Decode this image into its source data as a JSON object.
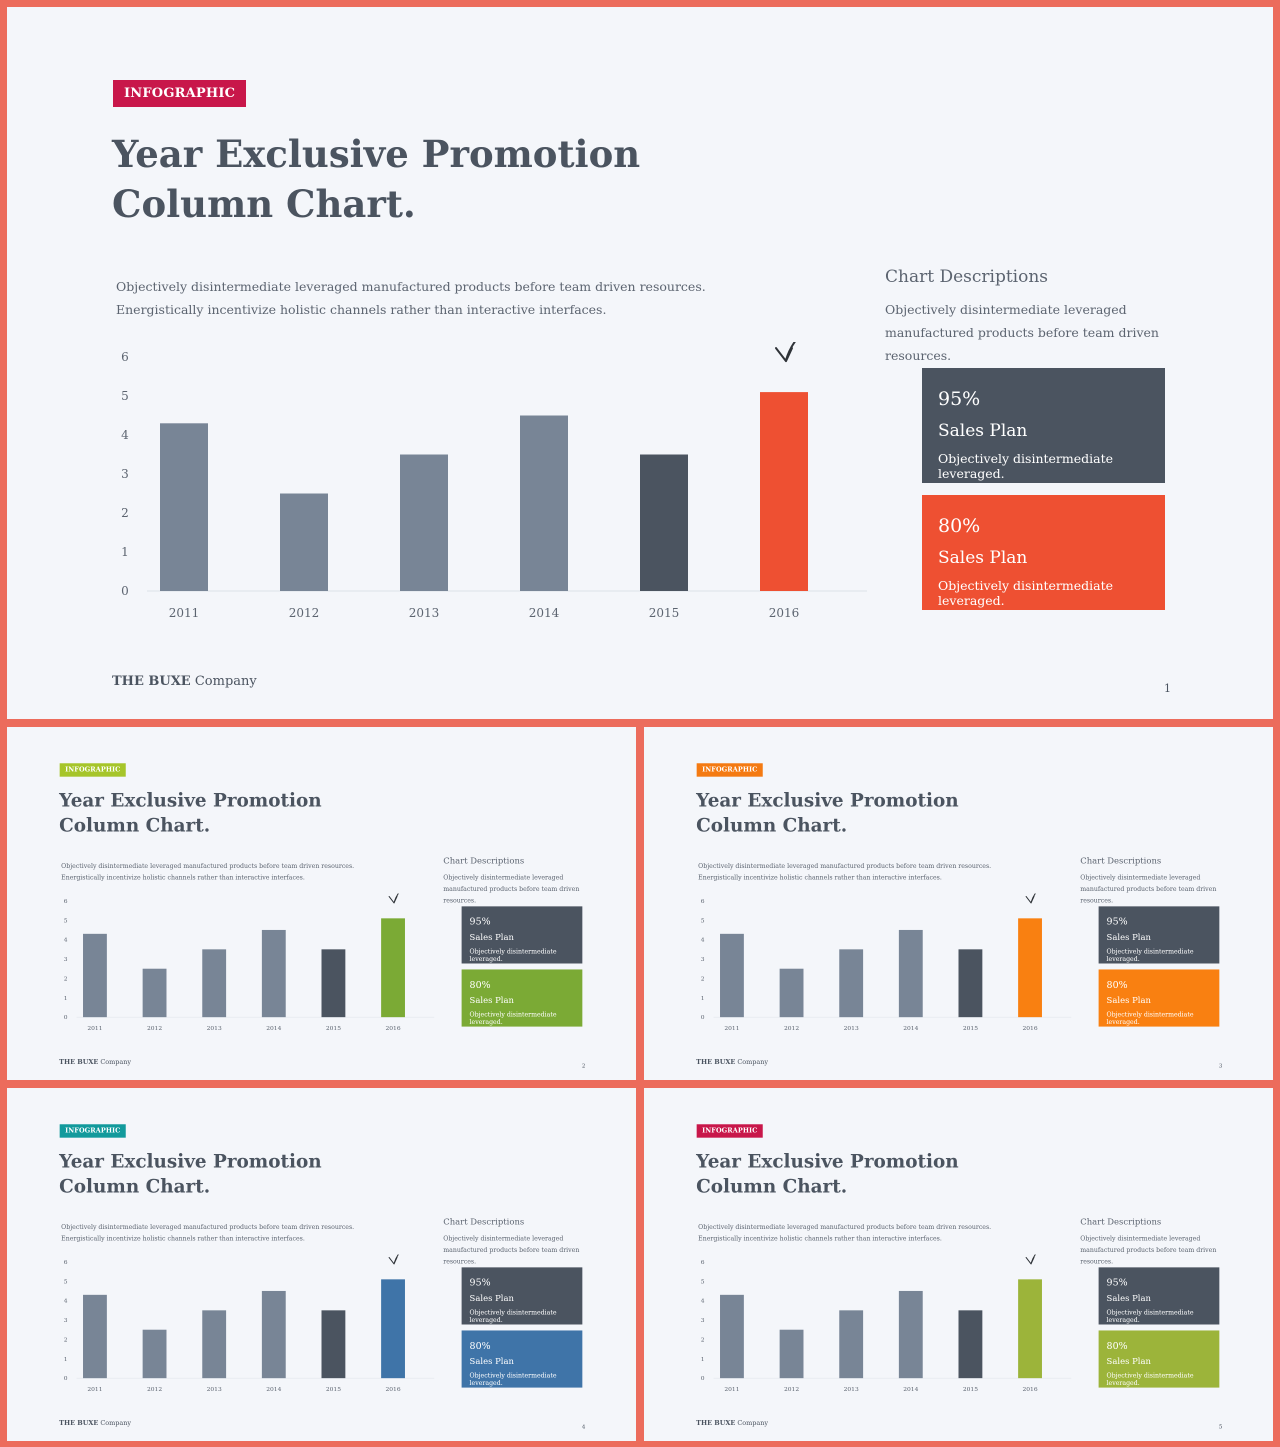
{
  "slides": [
    {
      "tag": "INFOGRAPHIC",
      "tag_color": "#c8174a",
      "accent": "#ee5032",
      "page": "1"
    },
    {
      "tag": "INFOGRAPHIC",
      "tag_color": "#a6c52a",
      "accent": "#7baa35",
      "page": "2"
    },
    {
      "tag": "INFOGRAPHIC",
      "tag_color": "#f47a12",
      "accent": "#f98011",
      "page": "3"
    },
    {
      "tag": "INFOGRAPHIC",
      "tag_color": "#129a9c",
      "accent": "#3f74a8",
      "page": "4"
    },
    {
      "tag": "INFOGRAPHIC",
      "tag_color": "#c8174a",
      "accent": "#9cb43a",
      "page": "5"
    }
  ],
  "content": {
    "title_line1": "Year Exclusive Promotion",
    "title_line2": "Column Chart.",
    "intro_line1": "Objectively disintermediate leveraged manufactured products before team  driven resources.",
    "intro_line2": "Energistically incentivize holistic channels rather than interactive interfaces.",
    "desc_title": "Chart Descriptions",
    "desc_text": "Objectively disintermediate leveraged manufactured products before team  driven resources.",
    "cards": [
      {
        "pct": "95%",
        "plan": "Sales Plan",
        "note": "Objectively disintermediate leveraged."
      },
      {
        "pct": "80%",
        "plan": "Sales Plan",
        "note": "Objectively disintermediate leveraged."
      }
    ],
    "footer_brand": "THE BUXE",
    "footer_company": "Company"
  },
  "chart_data": {
    "type": "bar",
    "categories": [
      "2011",
      "2012",
      "2013",
      "2014",
      "2015",
      "2016"
    ],
    "values": [
      4.3,
      2.5,
      3.5,
      4.5,
      3.5,
      5.1
    ],
    "ylim": [
      0,
      6
    ],
    "yticks": [
      "0",
      "1",
      "2",
      "3",
      "4",
      "5",
      "6"
    ],
    "bar_colors": [
      "#788596",
      "#788596",
      "#788596",
      "#788596",
      "#4b5460",
      "accent"
    ],
    "annotation": "arrow-icon pointing to 2016"
  }
}
